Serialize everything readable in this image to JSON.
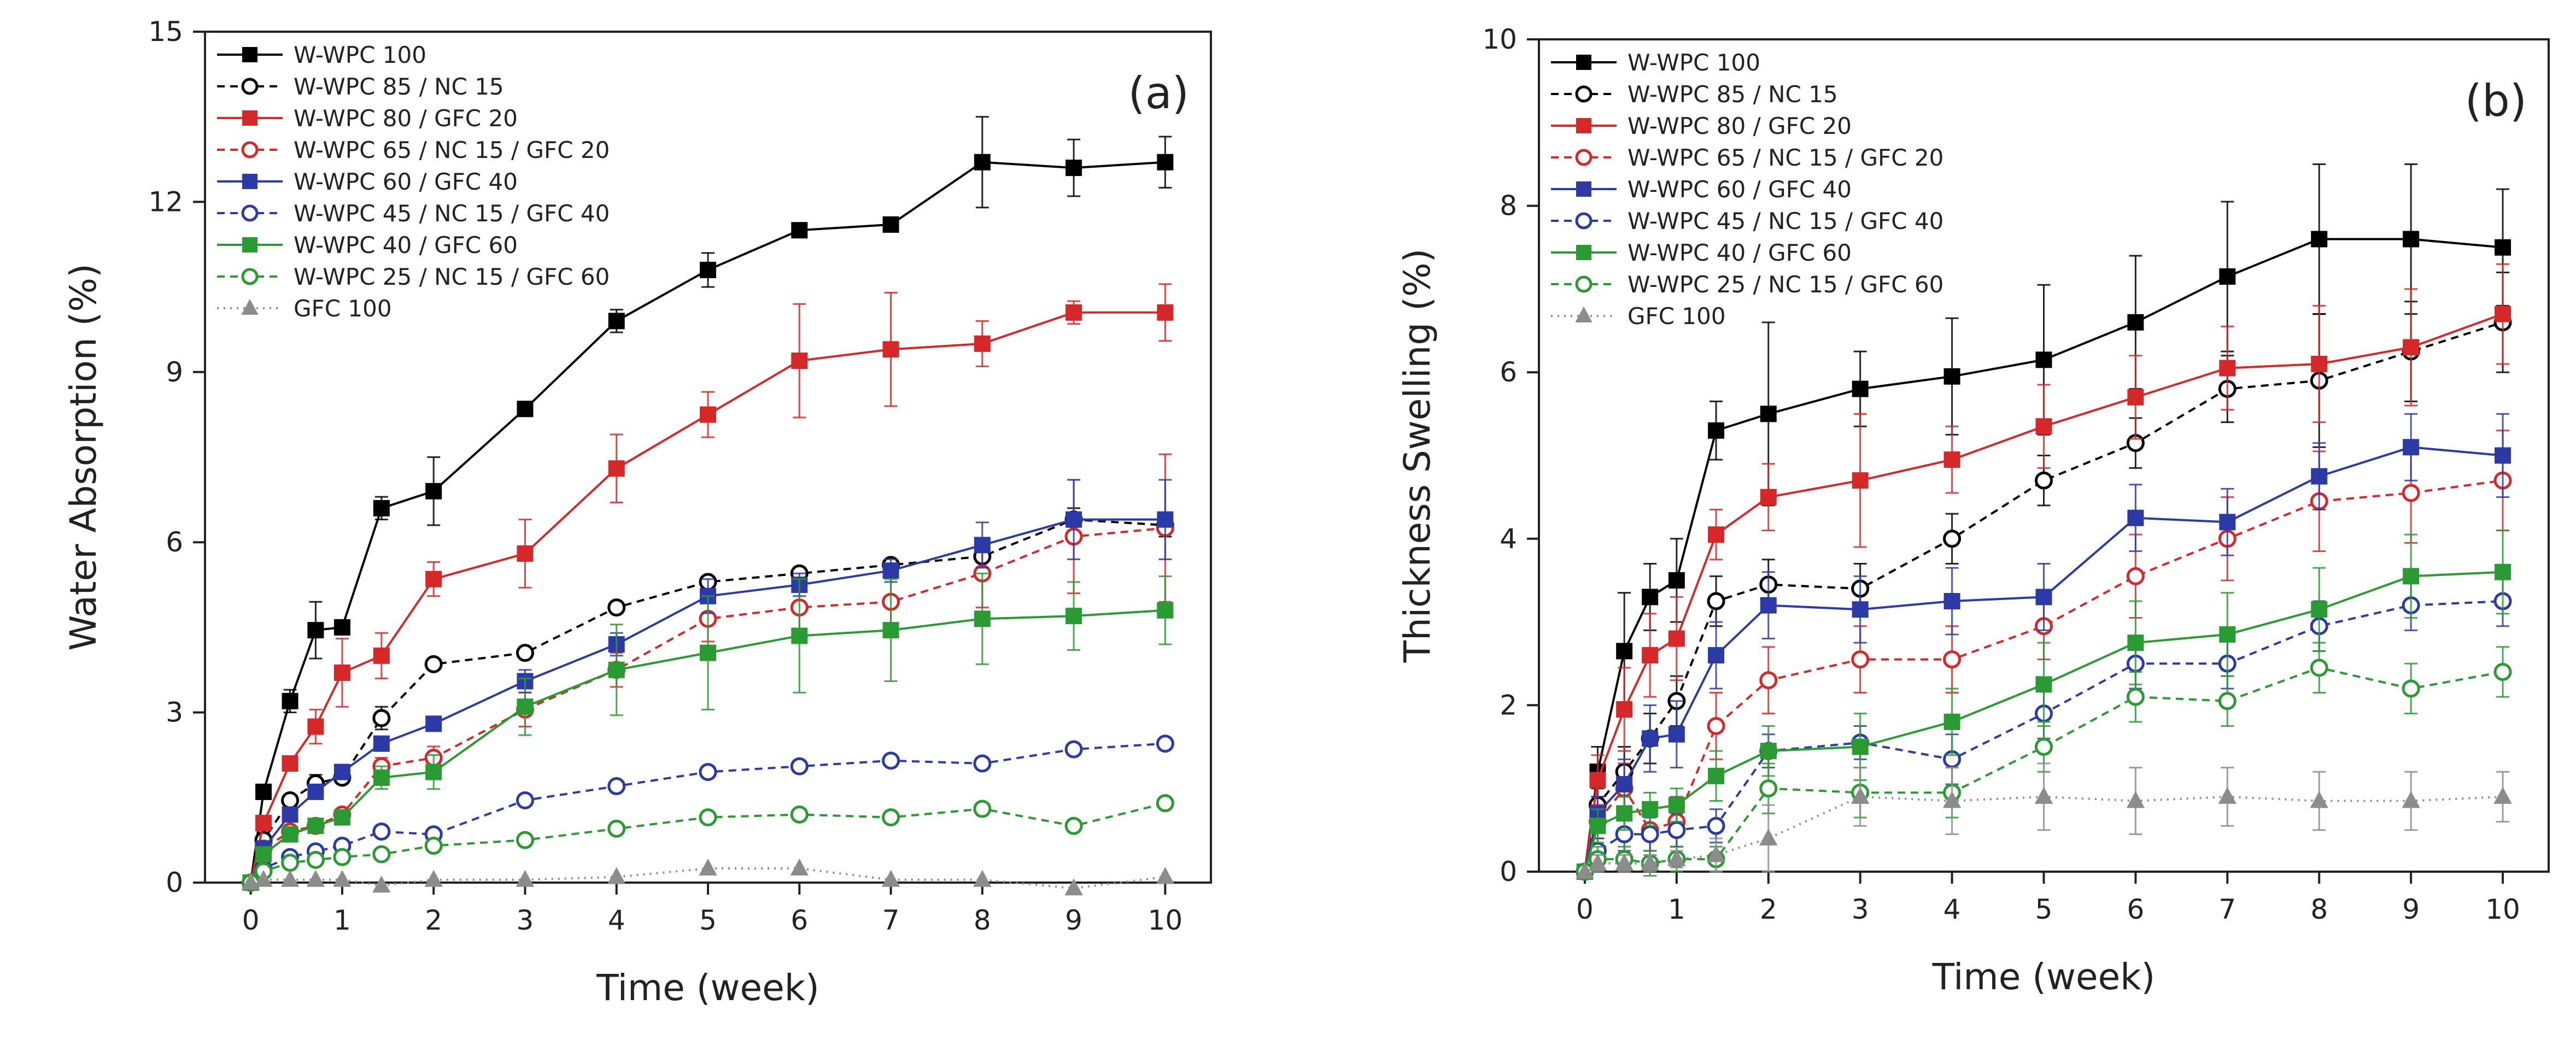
{
  "chart_data": [
    {
      "type": "line",
      "panel_label": "(a)",
      "xlabel": "Time (week)",
      "ylabel": "Water Absorption (%)",
      "xlim": [
        -0.5,
        10.5
      ],
      "ylim": [
        0,
        15
      ],
      "xticks": [
        0,
        1,
        2,
        3,
        4,
        5,
        6,
        7,
        8,
        9,
        10
      ],
      "yticks": [
        0,
        3,
        6,
        9,
        12,
        15
      ],
      "grid": false,
      "legend_position": "top-left",
      "x": [
        0,
        0.14,
        0.43,
        0.71,
        1,
        1.43,
        2,
        3,
        4,
        5,
        6,
        7,
        8,
        9,
        10
      ],
      "series": [
        {
          "name": "W-WPC 100",
          "color": "#000000",
          "marker": "square",
          "filled": true,
          "dash": "solid",
          "values": [
            0,
            1.6,
            3.2,
            4.45,
            4.5,
            6.6,
            6.9,
            8.35,
            9.9,
            10.8,
            11.5,
            11.6,
            12.7,
            12.6,
            12.7
          ],
          "errors": [
            0,
            0.1,
            0.2,
            0.5,
            0.1,
            0.2,
            0.6,
            0.1,
            0.2,
            0.3,
            0.1,
            0.1,
            0.8,
            0.5,
            0.45
          ]
        },
        {
          "name": "W-WPC 85 / NC 15",
          "color": "#000000",
          "marker": "circle",
          "filled": false,
          "dash": "dash",
          "values": [
            0,
            0.75,
            1.45,
            1.75,
            1.85,
            2.9,
            3.85,
            4.05,
            4.85,
            5.3,
            5.45,
            5.6,
            5.75,
            6.4,
            6.3
          ],
          "errors": [
            0,
            0.1,
            0.1,
            0.15,
            0.1,
            0.2,
            0.1,
            0.1,
            0.1,
            0.1,
            0.1,
            0.1,
            0.1,
            0.2,
            0.2
          ]
        },
        {
          "name": "W-WPC 80 / GFC 20",
          "color": "#d62828",
          "marker": "square",
          "filled": true,
          "dash": "solid",
          "values": [
            0,
            1.05,
            2.1,
            2.75,
            3.7,
            4.0,
            5.35,
            5.8,
            7.3,
            8.25,
            9.2,
            9.4,
            9.5,
            10.05,
            10.05
          ],
          "errors": [
            0,
            0.1,
            0.1,
            0.3,
            0.6,
            0.4,
            0.3,
            0.6,
            0.6,
            0.4,
            1.0,
            1.0,
            0.4,
            0.2,
            0.5
          ]
        },
        {
          "name": "W-WPC 65 / NC 15 / GFC 20",
          "color": "#d62828",
          "marker": "circle",
          "filled": false,
          "dash": "dash",
          "values": [
            0,
            0.6,
            0.9,
            1.0,
            1.2,
            2.05,
            2.2,
            3.05,
            3.75,
            4.65,
            4.85,
            4.95,
            5.45,
            6.1,
            6.25
          ],
          "errors": [
            0,
            0.1,
            0.1,
            0.1,
            0.1,
            0.15,
            0.2,
            0.3,
            0.3,
            0.4,
            0.5,
            0.5,
            0.6,
            1.0,
            1.3
          ]
        },
        {
          "name": "W-WPC 60 / GFC 40",
          "color": "#2b3aa6",
          "marker": "square",
          "filled": true,
          "dash": "solid",
          "values": [
            0,
            0.6,
            1.2,
            1.6,
            1.95,
            2.45,
            2.8,
            3.55,
            4.2,
            5.05,
            5.25,
            5.5,
            5.95,
            6.4,
            6.4
          ],
          "errors": [
            0,
            0.1,
            0.1,
            0.1,
            0.1,
            0.1,
            0.1,
            0.2,
            0.2,
            0.3,
            0.2,
            0.2,
            0.4,
            0.7,
            0.7
          ]
        },
        {
          "name": "W-WPC 45 / NC 15 / GFC 40",
          "color": "#2b3aa6",
          "marker": "circle",
          "filled": false,
          "dash": "dash",
          "values": [
            0,
            0.25,
            0.45,
            0.55,
            0.65,
            0.9,
            0.85,
            1.45,
            1.7,
            1.95,
            2.05,
            2.15,
            2.1,
            2.35,
            2.45
          ],
          "errors": [
            0,
            0.05,
            0.05,
            0.05,
            0.05,
            0.05,
            0.05,
            0.1,
            0.1,
            0.1,
            0.1,
            0.1,
            0.1,
            0.1,
            0.1
          ]
        },
        {
          "name": "W-WPC 40 / GFC 60",
          "color": "#2a9a32",
          "marker": "square",
          "filled": true,
          "dash": "solid",
          "values": [
            0,
            0.5,
            0.85,
            1.0,
            1.15,
            1.85,
            1.95,
            3.1,
            3.75,
            4.05,
            4.35,
            4.45,
            4.65,
            4.7,
            4.8
          ],
          "errors": [
            0,
            0.1,
            0.1,
            0.1,
            0.1,
            0.2,
            0.3,
            0.5,
            0.8,
            1.0,
            1.0,
            0.9,
            0.8,
            0.6,
            0.6
          ]
        },
        {
          "name": "W-WPC 25 / NC 15 / GFC 60",
          "color": "#2a9a32",
          "marker": "circle",
          "filled": false,
          "dash": "dash",
          "values": [
            0,
            0.2,
            0.35,
            0.4,
            0.45,
            0.5,
            0.65,
            0.75,
            0.95,
            1.15,
            1.2,
            1.15,
            1.3,
            1.0,
            1.4
          ],
          "errors": [
            0,
            0.05,
            0.05,
            0.05,
            0.05,
            0.1,
            0.1,
            0.1,
            0.1,
            0.1,
            0.1,
            0.1,
            0.1,
            0.1,
            0.1
          ]
        },
        {
          "name": "GFC 100",
          "color": "#8c8c8c",
          "marker": "triangle",
          "filled": true,
          "dash": "dot",
          "values": [
            0,
            0.05,
            0.05,
            0.05,
            0.05,
            -0.05,
            0.05,
            0.05,
            0.1,
            0.25,
            0.25,
            0.05,
            0.05,
            -0.1,
            0.1
          ],
          "errors": [
            0,
            0,
            0,
            0,
            0,
            0,
            0,
            0,
            0,
            0,
            0,
            0,
            0,
            0,
            0
          ]
        }
      ]
    },
    {
      "type": "line",
      "panel_label": "(b)",
      "xlabel": "Time (week)",
      "ylabel": "Thickness Swelling (%)",
      "xlim": [
        -0.5,
        10.5
      ],
      "ylim": [
        0,
        10
      ],
      "xticks": [
        0,
        1,
        2,
        3,
        4,
        5,
        6,
        7,
        8,
        9,
        10
      ],
      "yticks": [
        0,
        2,
        4,
        6,
        8,
        10
      ],
      "grid": false,
      "legend_position": "top-left",
      "x": [
        0,
        0.14,
        0.43,
        0.71,
        1,
        1.43,
        2,
        3,
        4,
        5,
        6,
        7,
        8,
        9,
        10
      ],
      "series": [
        {
          "name": "W-WPC 100",
          "color": "#000000",
          "marker": "square",
          "filled": true,
          "dash": "solid",
          "values": [
            0,
            1.2,
            2.65,
            3.3,
            3.5,
            5.3,
            5.5,
            5.8,
            5.95,
            6.15,
            6.6,
            7.15,
            7.6,
            7.6,
            7.5
          ],
          "errors": [
            0,
            0.3,
            0.7,
            0.4,
            0.5,
            0.35,
            1.1,
            0.45,
            0.7,
            0.9,
            0.8,
            0.9,
            0.9,
            0.9,
            0.7
          ]
        },
        {
          "name": "W-WPC 85 / NC 15",
          "color": "#000000",
          "marker": "circle",
          "filled": false,
          "dash": "dash",
          "values": [
            0,
            0.8,
            1.2,
            1.6,
            2.05,
            3.25,
            3.45,
            3.4,
            4.0,
            4.7,
            5.15,
            5.8,
            5.9,
            6.25,
            6.6
          ],
          "errors": [
            0,
            0.2,
            0.3,
            0.3,
            0.3,
            0.3,
            0.3,
            0.3,
            0.3,
            0.3,
            0.3,
            0.4,
            0.8,
            0.6,
            0.6
          ]
        },
        {
          "name": "W-WPC 80 / GFC 20",
          "color": "#d62828",
          "marker": "square",
          "filled": true,
          "dash": "solid",
          "values": [
            0,
            1.1,
            1.95,
            2.6,
            2.8,
            4.05,
            4.5,
            4.7,
            4.95,
            5.35,
            5.7,
            6.05,
            6.1,
            6.3,
            6.7
          ],
          "errors": [
            0,
            0.3,
            0.5,
            0.5,
            0.5,
            0.3,
            0.4,
            0.8,
            0.4,
            0.5,
            0.5,
            0.5,
            0.7,
            0.7,
            0.6
          ]
        },
        {
          "name": "W-WPC 65 / NC 15 / GFC 20",
          "color": "#d62828",
          "marker": "circle",
          "filled": false,
          "dash": "dash",
          "values": [
            0,
            0.6,
            1.0,
            0.5,
            0.6,
            1.75,
            2.3,
            2.55,
            2.55,
            2.95,
            3.55,
            4.0,
            4.45,
            4.55,
            4.7
          ],
          "errors": [
            0,
            0.2,
            0.3,
            0.3,
            0.3,
            0.4,
            0.4,
            0.4,
            0.4,
            0.4,
            0.5,
            0.5,
            0.6,
            0.6,
            0.6
          ]
        },
        {
          "name": "W-WPC 60 / GFC 40",
          "color": "#2b3aa6",
          "marker": "square",
          "filled": true,
          "dash": "solid",
          "values": [
            0,
            0.7,
            1.05,
            1.6,
            1.65,
            2.6,
            3.2,
            3.15,
            3.25,
            3.3,
            4.25,
            4.2,
            4.75,
            5.1,
            5.0
          ],
          "errors": [
            0,
            0.2,
            0.3,
            0.4,
            0.4,
            0.4,
            0.4,
            0.4,
            0.4,
            0.4,
            0.4,
            0.4,
            0.4,
            0.4,
            0.5
          ]
        },
        {
          "name": "W-WPC 45 / NC 15 / GFC 40",
          "color": "#2b3aa6",
          "marker": "circle",
          "filled": false,
          "dash": "dash",
          "values": [
            0,
            0.25,
            0.45,
            0.45,
            0.5,
            0.55,
            1.45,
            1.55,
            1.35,
            1.9,
            2.5,
            2.5,
            2.95,
            3.2,
            3.25
          ],
          "errors": [
            0,
            0.15,
            0.2,
            0.2,
            0.2,
            0.2,
            0.2,
            0.2,
            0.3,
            0.3,
            0.3,
            0.3,
            0.3,
            0.3,
            0.3
          ]
        },
        {
          "name": "W-WPC 40 / GFC 60",
          "color": "#2a9a32",
          "marker": "square",
          "filled": true,
          "dash": "solid",
          "values": [
            0,
            0.55,
            0.7,
            0.75,
            0.8,
            1.15,
            1.45,
            1.5,
            1.8,
            2.25,
            2.75,
            2.85,
            3.15,
            3.55,
            3.6
          ],
          "errors": [
            0,
            0.2,
            0.2,
            0.2,
            0.2,
            0.3,
            0.3,
            0.4,
            0.4,
            0.5,
            0.5,
            0.5,
            0.5,
            0.5,
            0.5
          ]
        },
        {
          "name": "W-WPC 25 / NC 15 / GFC 60",
          "color": "#2a9a32",
          "marker": "circle",
          "filled": false,
          "dash": "dash",
          "values": [
            0,
            0.15,
            0.15,
            0.1,
            0.15,
            0.15,
            1.0,
            0.95,
            0.95,
            1.5,
            2.1,
            2.05,
            2.45,
            2.2,
            2.4
          ],
          "errors": [
            0,
            0.15,
            0.15,
            0.15,
            0.15,
            0.15,
            0.3,
            0.3,
            0.3,
            0.3,
            0.3,
            0.3,
            0.3,
            0.3,
            0.3
          ]
        },
        {
          "name": "GFC 100",
          "color": "#8c8c8c",
          "marker": "triangle",
          "filled": true,
          "dash": "dot",
          "values": [
            0,
            0.1,
            0.1,
            0.1,
            0.15,
            0.2,
            0.4,
            0.9,
            0.85,
            0.9,
            0.85,
            0.9,
            0.85,
            0.85,
            0.9
          ],
          "errors": [
            0,
            0.1,
            0.1,
            0.1,
            0.1,
            0.2,
            0.4,
            0.35,
            0.4,
            0.4,
            0.4,
            0.35,
            0.35,
            0.35,
            0.3
          ]
        }
      ]
    }
  ]
}
